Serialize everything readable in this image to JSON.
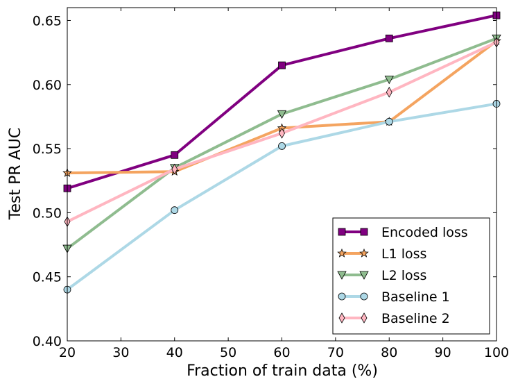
{
  "chart_data": {
    "type": "line",
    "xlabel": "Fraction of train data (%)",
    "ylabel": "Test PR AUC",
    "xlim": [
      20,
      100
    ],
    "ylim": [
      0.4,
      0.66
    ],
    "xticks": [
      "20",
      "30",
      "40",
      "50",
      "60",
      "70",
      "80",
      "90",
      "100"
    ],
    "yticks": [
      "0.40",
      "0.45",
      "0.50",
      "0.55",
      "0.60",
      "0.65"
    ],
    "x": [
      20,
      40,
      60,
      80,
      100
    ],
    "grid": false,
    "legend_position": "bottom-right",
    "series": [
      {
        "name": "Encoded loss",
        "color": "#800080",
        "marker": "square",
        "values": [
          0.519,
          0.545,
          0.615,
          0.636,
          0.654
        ]
      },
      {
        "name": "L1 loss",
        "color": "#f4a460",
        "marker": "star",
        "values": [
          0.531,
          0.532,
          0.566,
          0.571,
          0.634
        ]
      },
      {
        "name": "L2 loss",
        "color": "#8fbc8f",
        "marker": "triangle-down",
        "values": [
          0.472,
          0.535,
          0.577,
          0.604,
          0.636
        ]
      },
      {
        "name": "Baseline 1",
        "color": "#add8e6",
        "marker": "circle",
        "values": [
          0.44,
          0.502,
          0.552,
          0.571,
          0.585
        ]
      },
      {
        "name": "Baseline 2",
        "color": "#ffb6c1",
        "marker": "diamond",
        "values": [
          0.493,
          0.534,
          0.562,
          0.594,
          0.633
        ]
      }
    ]
  }
}
